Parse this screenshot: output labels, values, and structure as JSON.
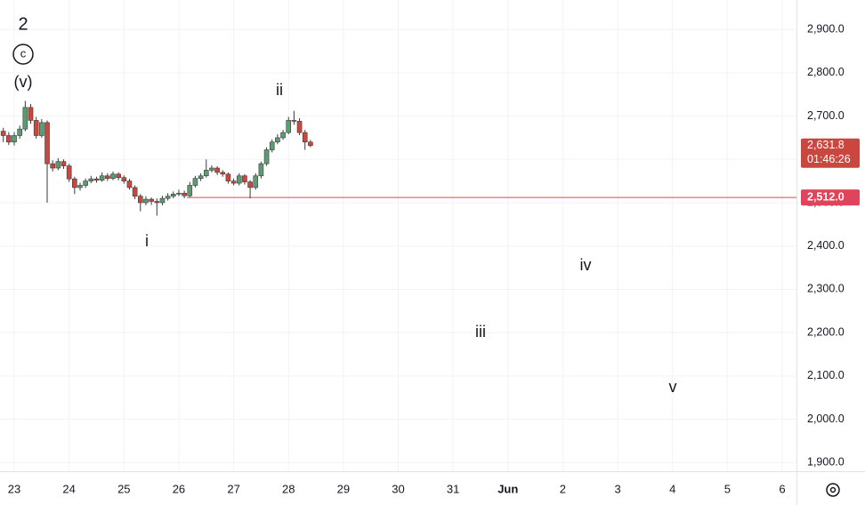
{
  "chart_data": {
    "type": "candlestick",
    "x": [
      -0.2,
      -0.1,
      0,
      0.1,
      0.2,
      0.3,
      0.4,
      0.5,
      0.6,
      0.7,
      0.8,
      0.9,
      1,
      1.1,
      1.2,
      1.3,
      1.4,
      1.5,
      1.6,
      1.7,
      1.8,
      1.9,
      2,
      2.1,
      2.2,
      2.3,
      2.4,
      2.5,
      2.6,
      2.7,
      2.8,
      2.9,
      3,
      3.1,
      3.2,
      3.3,
      3.4,
      3.5,
      3.6,
      3.7,
      3.8,
      3.9,
      4,
      4.1,
      4.2,
      4.3,
      4.4,
      4.5,
      4.6,
      4.7,
      4.8,
      4.9,
      5,
      5.1,
      5.2,
      5.3,
      5.4
    ],
    "open": [
      2665,
      2655,
      2640,
      2655,
      2670,
      2720,
      2690,
      2655,
      2685,
      2590,
      2580,
      2595,
      2585,
      2555,
      2535,
      2540,
      2550,
      2555,
      2552,
      2562,
      2556,
      2566,
      2558,
      2550,
      2535,
      2515,
      2500,
      2508,
      2503,
      2500,
      2510,
      2515,
      2520,
      2522,
      2516,
      2540,
      2556,
      2562,
      2575,
      2580,
      2570,
      2566,
      2550,
      2545,
      2562,
      2548,
      2535,
      2562,
      2590,
      2622,
      2640,
      2650,
      2662,
      2690,
      2688,
      2662,
      2640
    ],
    "high": [
      2673,
      2663,
      2663,
      2678,
      2735,
      2728,
      2698,
      2693,
      2690,
      2598,
      2603,
      2600,
      2590,
      2560,
      2546,
      2556,
      2562,
      2560,
      2570,
      2568,
      2572,
      2570,
      2563,
      2555,
      2540,
      2520,
      2515,
      2512,
      2510,
      2516,
      2522,
      2526,
      2530,
      2528,
      2548,
      2562,
      2568,
      2600,
      2586,
      2584,
      2575,
      2570,
      2556,
      2568,
      2566,
      2552,
      2568,
      2595,
      2628,
      2646,
      2658,
      2668,
      2698,
      2712,
      2695,
      2668,
      2645
    ],
    "low": [
      2640,
      2633,
      2632,
      2648,
      2665,
      2682,
      2648,
      2650,
      2500,
      2572,
      2575,
      2578,
      2548,
      2520,
      2528,
      2534,
      2545,
      2546,
      2548,
      2550,
      2552,
      2552,
      2544,
      2530,
      2508,
      2480,
      2494,
      2495,
      2470,
      2494,
      2505,
      2510,
      2515,
      2510,
      2512,
      2535,
      2550,
      2558,
      2570,
      2564,
      2560,
      2544,
      2540,
      2540,
      2542,
      2510,
      2530,
      2556,
      2585,
      2616,
      2635,
      2645,
      2658,
      2680,
      2656,
      2622,
      2628
    ],
    "close": [
      2655,
      2640,
      2655,
      2670,
      2720,
      2690,
      2655,
      2685,
      2590,
      2580,
      2595,
      2585,
      2555,
      2535,
      2540,
      2550,
      2555,
      2552,
      2562,
      2556,
      2566,
      2558,
      2550,
      2535,
      2515,
      2500,
      2508,
      2503,
      2500,
      2510,
      2515,
      2520,
      2522,
      2516,
      2540,
      2556,
      2562,
      2575,
      2580,
      2570,
      2566,
      2550,
      2545,
      2562,
      2548,
      2535,
      2562,
      2590,
      2622,
      2640,
      2650,
      2662,
      2690,
      2688,
      2662,
      2640,
      2632
    ],
    "up_color": "#5b9c73",
    "down_color": "#c9473f",
    "xlim": [
      -0.26,
      14.26
    ],
    "xticks": [
      {
        "value": 0,
        "label": "23"
      },
      {
        "value": 1,
        "label": "24"
      },
      {
        "value": 2,
        "label": "25"
      },
      {
        "value": 3,
        "label": "26"
      },
      {
        "value": 4,
        "label": "27"
      },
      {
        "value": 5,
        "label": "28"
      },
      {
        "value": 6,
        "label": "29"
      },
      {
        "value": 7,
        "label": "30"
      },
      {
        "value": 8,
        "label": "31"
      },
      {
        "value": 9,
        "label": "Jun"
      },
      {
        "value": 10,
        "label": "2"
      },
      {
        "value": 11,
        "label": "3"
      },
      {
        "value": 12,
        "label": "4"
      },
      {
        "value": 13,
        "label": "5"
      },
      {
        "value": 14,
        "label": "6"
      }
    ],
    "ylim": [
      1880,
      2968
    ],
    "yticks": [
      {
        "value": 1900,
        "label": "1,900.0"
      },
      {
        "value": 2000,
        "label": "2,000.0"
      },
      {
        "value": 2100,
        "label": "2,100.0"
      },
      {
        "value": 2200,
        "label": "2,200.0"
      },
      {
        "value": 2300,
        "label": "2,300.0"
      },
      {
        "value": 2400,
        "label": "2,400.0"
      },
      {
        "value": 2500,
        "label": "2,500.0"
      },
      {
        "value": 2600,
        "label": "2,600.0"
      },
      {
        "value": 2700,
        "label": "2,700.0"
      },
      {
        "value": 2800,
        "label": "2,800.0"
      },
      {
        "value": 2900,
        "label": "2,900.0"
      }
    ],
    "grid": true,
    "last_price": {
      "value": 2631.8,
      "label": "2,631.8"
    },
    "countdown": "01:46:26",
    "level_line": {
      "value": 2512,
      "label": "2,512.0",
      "color": "#e0445a"
    },
    "annotations": [
      "2",
      "c",
      "(v)",
      "ii",
      "i",
      "iii",
      "iv",
      "v"
    ]
  }
}
